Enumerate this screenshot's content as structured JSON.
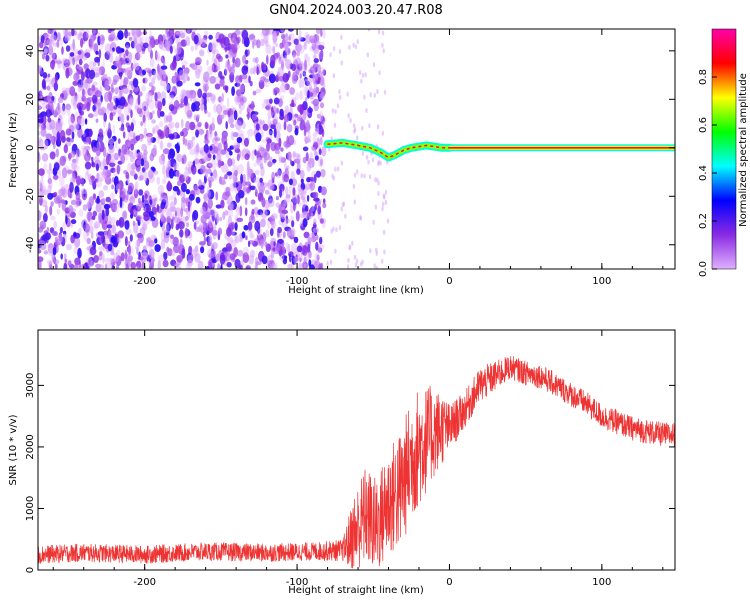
{
  "figure_title": "GN04.2024.003.20.47.R08",
  "chart_data": [
    {
      "type": "heatmap",
      "title": "",
      "xlabel": "Height of straight line (km)",
      "ylabel": "Frequency (Hz)",
      "xlim": [
        -270,
        148
      ],
      "ylim": [
        -50,
        49
      ],
      "xticks": [
        -200,
        -100,
        0,
        100
      ],
      "yticks": [
        -40,
        -20,
        0,
        20,
        40
      ],
      "colorbar": {
        "label": "Normalized spectral amplitude",
        "range": [
          0,
          1
        ],
        "ticks": [
          0.0,
          0.2,
          0.4,
          0.6,
          0.8
        ],
        "colormap": [
          "#e0b0ff",
          "#8a2be2",
          "#0000ff",
          "#00ffff",
          "#00ff00",
          "#ffff00",
          "#ff0000",
          "#ff00aa"
        ]
      },
      "features": [
        {
          "kind": "noise",
          "x_range": [
            -270,
            -82
          ],
          "y_range": [
            -50,
            49
          ],
          "amplitude": [
            0.0,
            0.25
          ]
        },
        {
          "kind": "ridge",
          "x": [
            -80,
            -70,
            -60,
            -52,
            -45,
            -40,
            -36,
            -30,
            -25,
            -20,
            -15,
            -10,
            -5,
            0
          ],
          "y": [
            1.5,
            2.0,
            1.0,
            0.0,
            -2.0,
            -4.0,
            -3.0,
            -1.0,
            0.0,
            0.5,
            1.0,
            0.5,
            0.0,
            0.0
          ]
        },
        {
          "kind": "line",
          "x_range": [
            0,
            148
          ],
          "y": 0,
          "amplitude": 0.9
        }
      ]
    },
    {
      "type": "line",
      "title": "",
      "xlabel": "Height of straight line (km)",
      "ylabel": "SNR (10 * v/v)",
      "xlim": [
        -270,
        148
      ],
      "ylim": [
        0,
        3900
      ],
      "xticks": [
        -200,
        -100,
        0,
        100
      ],
      "yticks": [
        0,
        1000,
        2000,
        3000
      ],
      "color": "#ee3333",
      "series": [
        {
          "x": [
            -270,
            -240,
            -200,
            -160,
            -120,
            -90,
            -70,
            -62,
            -55,
            -48,
            -40,
            -32,
            -25,
            -20,
            -12,
            -5,
            0,
            10,
            20,
            30,
            40,
            50,
            60,
            70,
            80,
            90,
            100,
            110,
            120,
            130,
            140,
            148
          ],
          "y": [
            250,
            280,
            250,
            300,
            280,
            300,
            320,
            600,
            900,
            700,
            1100,
            1300,
            1800,
            2000,
            2200,
            2300,
            2300,
            2600,
            3000,
            3150,
            3300,
            3200,
            3150,
            3000,
            2850,
            2700,
            2500,
            2400,
            2300,
            2250,
            2200,
            2200
          ],
          "noise": [
            150,
            150,
            150,
            150,
            150,
            150,
            180,
            700,
            800,
            800,
            900,
            1000,
            1000,
            1000,
            800,
            600,
            400,
            300,
            300,
            250,
            200,
            200,
            200,
            200,
            200,
            200,
            200,
            200,
            200,
            200,
            200,
            200
          ]
        }
      ]
    }
  ]
}
